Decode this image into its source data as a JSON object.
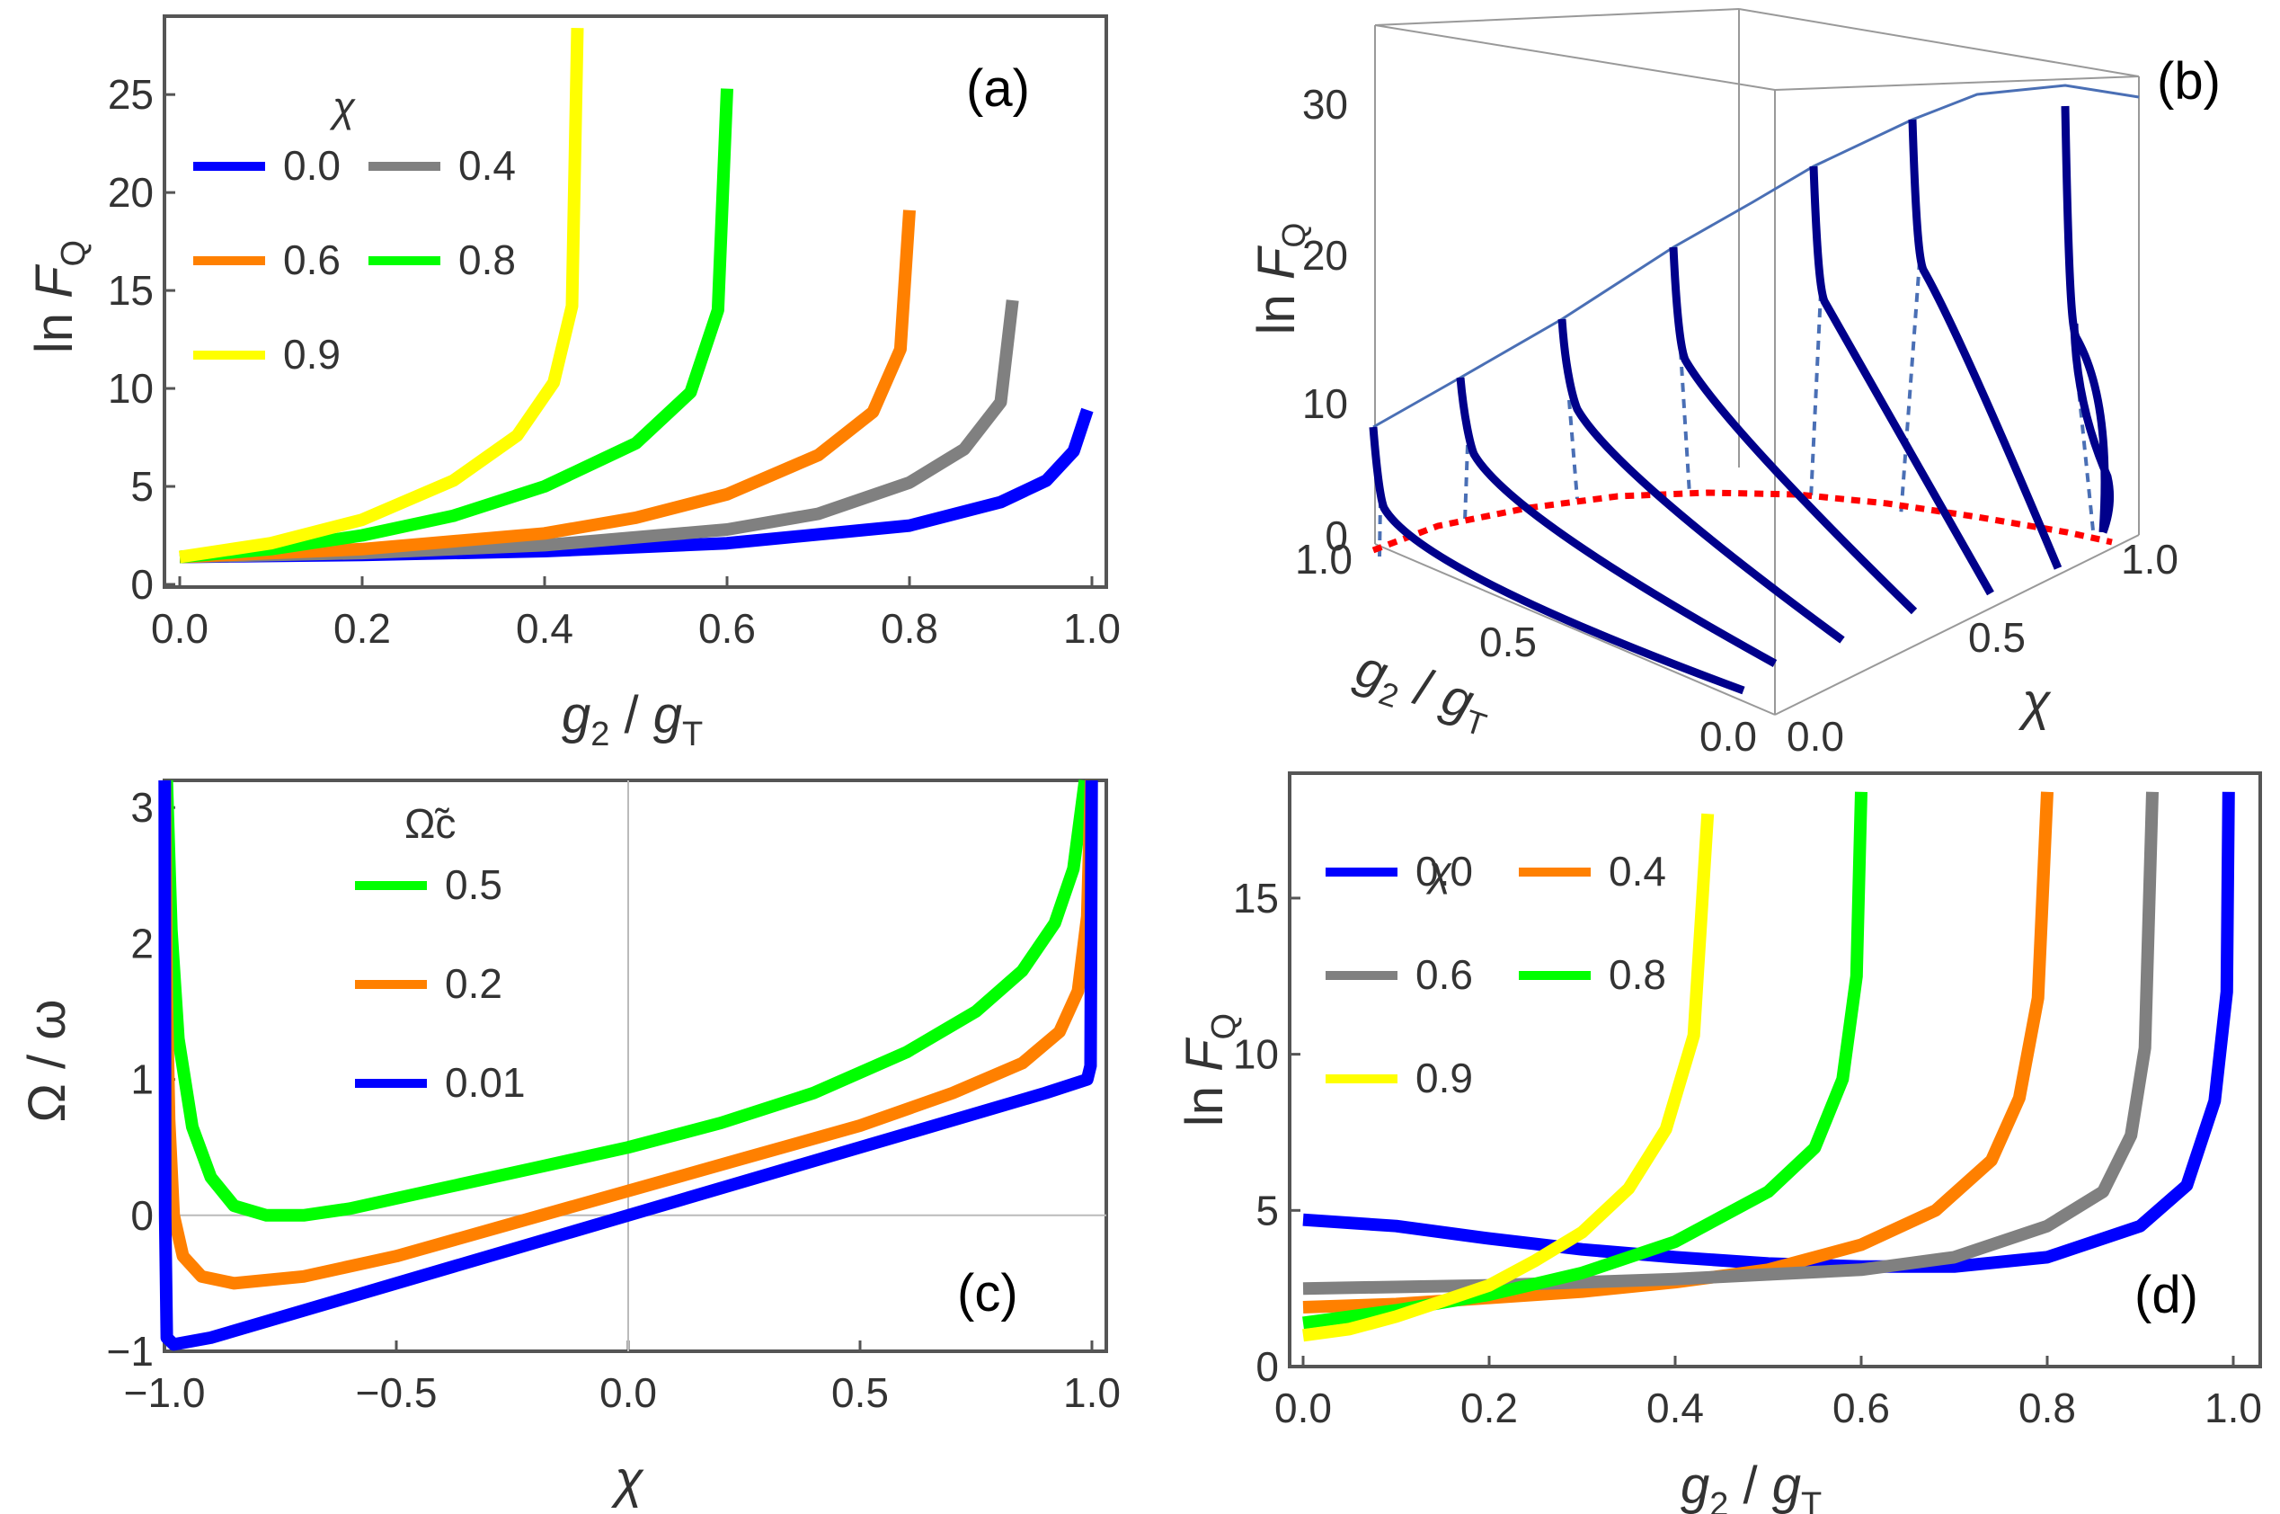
{
  "chart_data": [
    {
      "panel": "a",
      "type": "line",
      "tag": "(a)",
      "xlabel": "g2 / gT",
      "ylabel": "ln FQ",
      "xlim": [
        0,
        1
      ],
      "ylim": [
        0,
        29
      ],
      "xticks": [
        "0.0",
        "0.2",
        "0.4",
        "0.6",
        "0.8",
        "1.0"
      ],
      "yticks": [
        "0",
        "5",
        "10",
        "15",
        "20",
        "25"
      ],
      "legend_title": "χ",
      "legend_placement": "top-left",
      "series": [
        {
          "name": "0.0",
          "color": "#0000ff",
          "points": [
            [
              0,
              1.4
            ],
            [
              0.2,
              1.5
            ],
            [
              0.4,
              1.7
            ],
            [
              0.6,
              2.1
            ],
            [
              0.8,
              3.0
            ],
            [
              0.9,
              4.2
            ],
            [
              0.95,
              5.3
            ],
            [
              0.98,
              6.8
            ],
            [
              0.995,
              8.9
            ]
          ]
        },
        {
          "name": "0.4",
          "color": "#808080",
          "points": [
            [
              0,
              1.4
            ],
            [
              0.2,
              1.6
            ],
            [
              0.4,
              2.0
            ],
            [
              0.6,
              2.8
            ],
            [
              0.7,
              3.6
            ],
            [
              0.8,
              5.2
            ],
            [
              0.86,
              6.9
            ],
            [
              0.9,
              9.3
            ],
            [
              0.913,
              14.5
            ]
          ]
        },
        {
          "name": "0.6",
          "color": "#ff8000",
          "points": [
            [
              0,
              1.4
            ],
            [
              0.2,
              1.8
            ],
            [
              0.4,
              2.6
            ],
            [
              0.5,
              3.4
            ],
            [
              0.6,
              4.6
            ],
            [
              0.7,
              6.6
            ],
            [
              0.76,
              8.8
            ],
            [
              0.79,
              12.0
            ],
            [
              0.8,
              19.1
            ]
          ]
        },
        {
          "name": "0.8",
          "color": "#00ff00",
          "points": [
            [
              0,
              1.4
            ],
            [
              0.1,
              1.8
            ],
            [
              0.2,
              2.5
            ],
            [
              0.3,
              3.5
            ],
            [
              0.4,
              5.0
            ],
            [
              0.5,
              7.2
            ],
            [
              0.56,
              9.8
            ],
            [
              0.59,
              14.0
            ],
            [
              0.6,
              25.3
            ]
          ]
        },
        {
          "name": "0.9",
          "color": "#ffff00",
          "points": [
            [
              0,
              1.4
            ],
            [
              0.1,
              2.1
            ],
            [
              0.2,
              3.3
            ],
            [
              0.3,
              5.3
            ],
            [
              0.37,
              7.6
            ],
            [
              0.41,
              10.3
            ],
            [
              0.43,
              14.2
            ],
            [
              0.436,
              28.4
            ]
          ]
        }
      ]
    },
    {
      "panel": "b",
      "type": "line",
      "tag": "(b)",
      "xlabel": "g2 / gT",
      "ylabel": "ln FQ",
      "zlabel": "χ",
      "xticks": [
        "0.0",
        "0.5",
        "1.0"
      ],
      "yticks": [
        "0.0",
        "0.5",
        "1.0"
      ],
      "zticks": [
        "0",
        "10",
        "20",
        "30"
      ],
      "series_color": "#00008b",
      "envelope_color": "#4a6fb5",
      "critical_line_color": "#ff0000"
    },
    {
      "panel": "c",
      "type": "line",
      "tag": "(c)",
      "xlabel": "χ",
      "ylabel": "Ω / ω",
      "xlim": [
        -1,
        1
      ],
      "ylim": [
        -1,
        3.2
      ],
      "xticks": [
        "−1.0",
        "−0.5",
        "0.0",
        "0.5",
        "1.0"
      ],
      "yticks": [
        "−1",
        "0",
        "1",
        "2",
        "3"
      ],
      "legend_title": "Ω̃c",
      "legend_placement": "top-left",
      "series": [
        {
          "name": "0.5",
          "color": "#00ff00",
          "points": [
            [
              -0.995,
              3.2
            ],
            [
              -0.985,
              2.1
            ],
            [
              -0.97,
              1.3
            ],
            [
              -0.94,
              0.65
            ],
            [
              -0.9,
              0.28
            ],
            [
              -0.85,
              0.07
            ],
            [
              -0.78,
              0.0
            ],
            [
              -0.7,
              0.0
            ],
            [
              -0.6,
              0.05
            ],
            [
              -0.4,
              0.2
            ],
            [
              -0.2,
              0.35
            ],
            [
              0,
              0.5
            ],
            [
              0.2,
              0.68
            ],
            [
              0.4,
              0.9
            ],
            [
              0.6,
              1.2
            ],
            [
              0.75,
              1.5
            ],
            [
              0.85,
              1.8
            ],
            [
              0.92,
              2.15
            ],
            [
              0.96,
              2.55
            ],
            [
              0.985,
              3.2
            ]
          ]
        },
        {
          "name": "0.2",
          "color": "#ff8000",
          "points": [
            [
              -0.999,
              3.2
            ],
            [
              -0.995,
              1.6
            ],
            [
              -0.99,
              0.7
            ],
            [
              -0.98,
              0.0
            ],
            [
              -0.96,
              -0.3
            ],
            [
              -0.92,
              -0.45
            ],
            [
              -0.85,
              -0.5
            ],
            [
              -0.7,
              -0.45
            ],
            [
              -0.5,
              -0.3
            ],
            [
              -0.25,
              -0.06
            ],
            [
              0,
              0.18
            ],
            [
              0.25,
              0.42
            ],
            [
              0.5,
              0.66
            ],
            [
              0.7,
              0.9
            ],
            [
              0.85,
              1.12
            ],
            [
              0.93,
              1.35
            ],
            [
              0.97,
              1.65
            ],
            [
              0.99,
              2.2
            ],
            [
              0.998,
              3.2
            ]
          ]
        },
        {
          "name": "0.01",
          "color": "#0000ff",
          "points": [
            [
              -0.9995,
              3.2
            ],
            [
              -0.9985,
              0.0
            ],
            [
              -0.995,
              -0.9
            ],
            [
              -0.98,
              -0.95
            ],
            [
              -0.9,
              -0.9
            ],
            [
              -0.5,
              -0.5
            ],
            [
              0,
              0
            ],
            [
              0.5,
              0.5
            ],
            [
              0.9,
              0.9
            ],
            [
              0.99,
              1.0
            ],
            [
              0.997,
              1.1
            ],
            [
              0.9995,
              3.2
            ]
          ]
        }
      ]
    },
    {
      "panel": "d",
      "type": "line",
      "tag": "(d)",
      "xlabel": "g2 / gT",
      "ylabel": "ln FQ",
      "xlim": [
        0,
        1
      ],
      "ylim": [
        0,
        19
      ],
      "xticks": [
        "0.0",
        "0.2",
        "0.4",
        "0.6",
        "0.8",
        "1.0"
      ],
      "yticks": [
        "0",
        "5",
        "10",
        "15"
      ],
      "legend_title": "χ",
      "legend_placement": "top-left",
      "series": [
        {
          "name": "0.0",
          "color": "#0000ff",
          "points": [
            [
              0,
              4.7
            ],
            [
              0.1,
              4.5
            ],
            [
              0.2,
              4.1
            ],
            [
              0.3,
              3.75
            ],
            [
              0.4,
              3.5
            ],
            [
              0.5,
              3.3
            ],
            [
              0.6,
              3.2
            ],
            [
              0.7,
              3.2
            ],
            [
              0.8,
              3.5
            ],
            [
              0.9,
              4.5
            ],
            [
              0.95,
              5.8
            ],
            [
              0.98,
              8.5
            ],
            [
              0.993,
              12.0
            ],
            [
              0.995,
              18.4
            ]
          ]
        },
        {
          "name": "0.4",
          "color": "#ff8000",
          "points": [
            [
              0,
              1.9
            ],
            [
              0.1,
              2.0
            ],
            [
              0.2,
              2.2
            ],
            [
              0.3,
              2.4
            ],
            [
              0.4,
              2.7
            ],
            [
              0.5,
              3.1
            ],
            [
              0.6,
              3.9
            ],
            [
              0.68,
              5.0
            ],
            [
              0.74,
              6.6
            ],
            [
              0.77,
              8.6
            ],
            [
              0.79,
              11.8
            ],
            [
              0.8,
              18.4
            ]
          ]
        },
        {
          "name": "0.6",
          "color": "#808080",
          "points": [
            [
              0,
              2.5
            ],
            [
              0.2,
              2.6
            ],
            [
              0.4,
              2.8
            ],
            [
              0.6,
              3.1
            ],
            [
              0.7,
              3.5
            ],
            [
              0.8,
              4.5
            ],
            [
              0.86,
              5.6
            ],
            [
              0.89,
              7.4
            ],
            [
              0.905,
              10.2
            ],
            [
              0.913,
              18.4
            ]
          ]
        },
        {
          "name": "0.8",
          "color": "#00ff00",
          "points": [
            [
              0,
              1.4
            ],
            [
              0.1,
              1.8
            ],
            [
              0.2,
              2.3
            ],
            [
              0.3,
              3.0
            ],
            [
              0.4,
              4.0
            ],
            [
              0.5,
              5.6
            ],
            [
              0.55,
              7.0
            ],
            [
              0.58,
              9.2
            ],
            [
              0.595,
              12.5
            ],
            [
              0.6,
              18.4
            ]
          ]
        },
        {
          "name": "0.9",
          "color": "#ffff00",
          "points": [
            [
              0,
              1.0
            ],
            [
              0.05,
              1.2
            ],
            [
              0.1,
              1.6
            ],
            [
              0.15,
              2.1
            ],
            [
              0.2,
              2.6
            ],
            [
              0.25,
              3.4
            ],
            [
              0.3,
              4.3
            ],
            [
              0.35,
              5.7
            ],
            [
              0.39,
              7.6
            ],
            [
              0.42,
              10.6
            ],
            [
              0.435,
              17.7
            ]
          ]
        }
      ]
    }
  ]
}
